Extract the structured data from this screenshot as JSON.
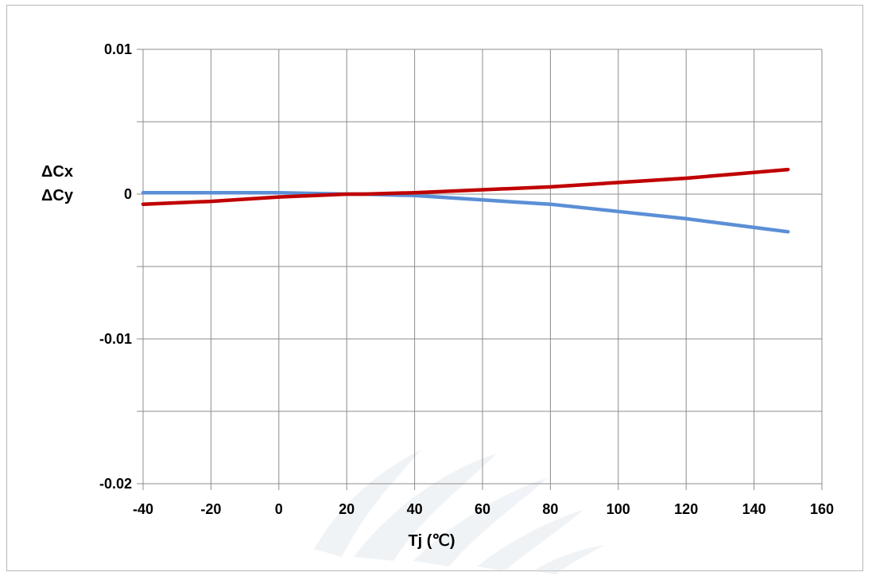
{
  "chart_data": {
    "type": "line",
    "xlabel": "Tj (℃)",
    "ylabel_lines": [
      "ΔCx",
      "ΔCy"
    ],
    "xlim": [
      -40,
      160
    ],
    "ylim": [
      -0.02,
      0.01
    ],
    "x_ticks": [
      -40,
      -20,
      0,
      20,
      40,
      60,
      80,
      100,
      120,
      140,
      160
    ],
    "x_tick_labels": [
      "-40",
      "-20",
      "0",
      "20",
      "40",
      "60",
      "80",
      "100",
      "120",
      "140",
      "160"
    ],
    "y_ticks": [
      0.01,
      0.005,
      0,
      -0.005,
      -0.01,
      -0.015,
      -0.02
    ],
    "y_tick_labels": [
      "0.01",
      "",
      "0",
      "",
      "-0.01",
      "",
      "-0.02"
    ],
    "grid": true,
    "series": [
      {
        "color": "#5b8fd6",
        "x": [
          -40,
          -20,
          0,
          20,
          25,
          40,
          60,
          80,
          100,
          120,
          140,
          150
        ],
        "y": [
          0.0001,
          0.0001,
          0.0001,
          0.0,
          0.0,
          -0.0001,
          -0.0004,
          -0.0007,
          -0.0012,
          -0.0017,
          -0.0023,
          -0.0026
        ]
      },
      {
        "color": "#c00000",
        "x": [
          -40,
          -20,
          0,
          20,
          25,
          40,
          60,
          80,
          100,
          120,
          140,
          150
        ],
        "y": [
          -0.0007,
          -0.0005,
          -0.0002,
          0.0,
          0.0,
          0.0001,
          0.0003,
          0.0005,
          0.0008,
          0.0011,
          0.0015,
          0.0017
        ]
      }
    ]
  }
}
